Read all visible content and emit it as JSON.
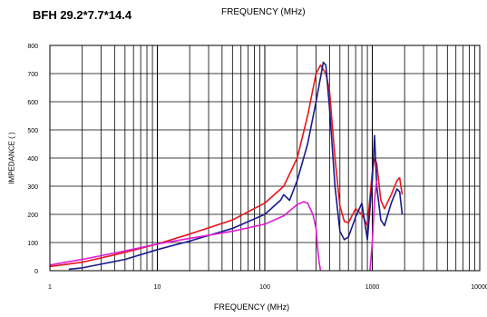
{
  "chart_data": {
    "type": "line",
    "title": "BFH 29.2*7.7*14.4",
    "top_label": "FREQUENCY (MHz)",
    "xlabel": "FREQUENCY (MHz)",
    "ylabel": "IMPEDANCE (   )",
    "x_scale": "log",
    "xlim": [
      1,
      10000
    ],
    "ylim": [
      0,
      800
    ],
    "x_ticks": [
      "1",
      "10",
      "100",
      "1000",
      "10000"
    ],
    "y_ticks": [
      "0",
      "100",
      "200",
      "300",
      "400",
      "500",
      "600",
      "700",
      "800"
    ],
    "grid": true,
    "series": [
      {
        "color": "#e8151b",
        "x": [
          1,
          2,
          5,
          10,
          20,
          50,
          100,
          150,
          200,
          250,
          300,
          330,
          370,
          400,
          450,
          500,
          550,
          600,
          700,
          800,
          900,
          1000,
          1050,
          1100,
          1200,
          1300,
          1500,
          1700,
          1800,
          1900
        ],
        "y": [
          15,
          30,
          65,
          95,
          130,
          180,
          240,
          300,
          400,
          550,
          700,
          730,
          700,
          640,
          400,
          230,
          175,
          170,
          220,
          200,
          160,
          350,
          400,
          380,
          250,
          220,
          270,
          320,
          330,
          270
        ]
      },
      {
        "color": "#1a1a8c",
        "x": [
          1.5,
          2,
          5,
          10,
          20,
          50,
          100,
          140,
          150,
          170,
          200,
          250,
          300,
          350,
          370,
          400,
          450,
          500,
          550,
          600,
          700,
          800,
          900,
          1000,
          1050,
          1100,
          1200,
          1300,
          1500,
          1700,
          1800,
          1900
        ],
        "y": [
          5,
          10,
          40,
          75,
          105,
          150,
          200,
          250,
          270,
          250,
          320,
          450,
          600,
          740,
          730,
          580,
          300,
          140,
          110,
          120,
          190,
          240,
          110,
          320,
          480,
          300,
          180,
          160,
          240,
          290,
          280,
          200
        ]
      },
      {
        "color": "#e01ad6",
        "x": [
          1,
          2,
          5,
          10,
          20,
          50,
          100,
          150,
          200,
          230,
          250,
          280,
          300,
          310,
          320,
          330
        ],
        "y": [
          20,
          40,
          70,
          95,
          115,
          140,
          165,
          195,
          235,
          245,
          240,
          200,
          150,
          80,
          30,
          0
        ]
      },
      {
        "color": "#e01ad6",
        "x": [
          950,
          1000,
          1050,
          1100
        ],
        "y": [
          0,
          100,
          250,
          320
        ]
      }
    ]
  }
}
